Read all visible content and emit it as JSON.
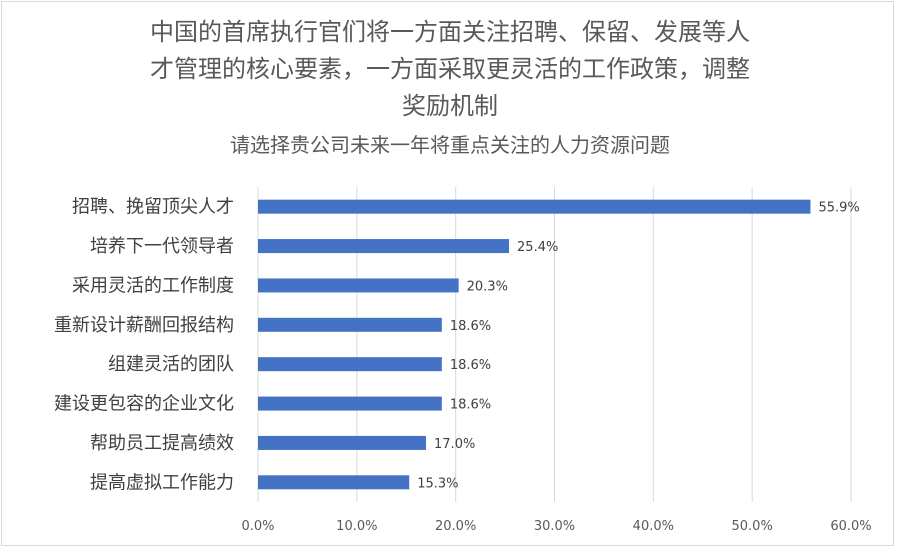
{
  "chart_data": {
    "type": "bar",
    "orientation": "horizontal",
    "title": "中国的首席执行官们将一方面关注招聘、保留、发展等人才管理的核心要素，一方面采取更灵活的工作政策，调整奖励机制",
    "title_lines": [
      "中国的首席执行官们将一方面关注招聘、保留、发展等人",
      "才管理的核心要素，一方面采取更灵活的工作政策，调整",
      "奖励机制"
    ],
    "subtitle": "请选择贵公司未来一年将重点关注的人力资源问题",
    "categories": [
      "招聘、挽留顶尖人才",
      "培养下一代领导者",
      "采用灵活的工作制度",
      "重新设计薪酬回报结构",
      "组建灵活的团队",
      "建设更包容的企业文化",
      "帮助员工提高绩效",
      "提高虚拟工作能力"
    ],
    "values": [
      55.9,
      25.4,
      20.3,
      18.6,
      18.6,
      18.6,
      17.0,
      15.3
    ],
    "data_labels": [
      "55.9%",
      "25.4%",
      "20.3%",
      "18.6%",
      "18.6%",
      "18.6%",
      "17.0%",
      "15.3%"
    ],
    "xlim": [
      0,
      60
    ],
    "xticks": [
      0,
      10,
      20,
      30,
      40,
      50,
      60
    ],
    "xtick_labels": [
      "0.0%",
      "10.0%",
      "20.0%",
      "30.0%",
      "40.0%",
      "50.0%",
      "60.0%"
    ],
    "grid": true,
    "legend": "none",
    "colors": {
      "bar": "#4472c4",
      "grid": "#d9d9d9",
      "text": "#595959"
    }
  }
}
